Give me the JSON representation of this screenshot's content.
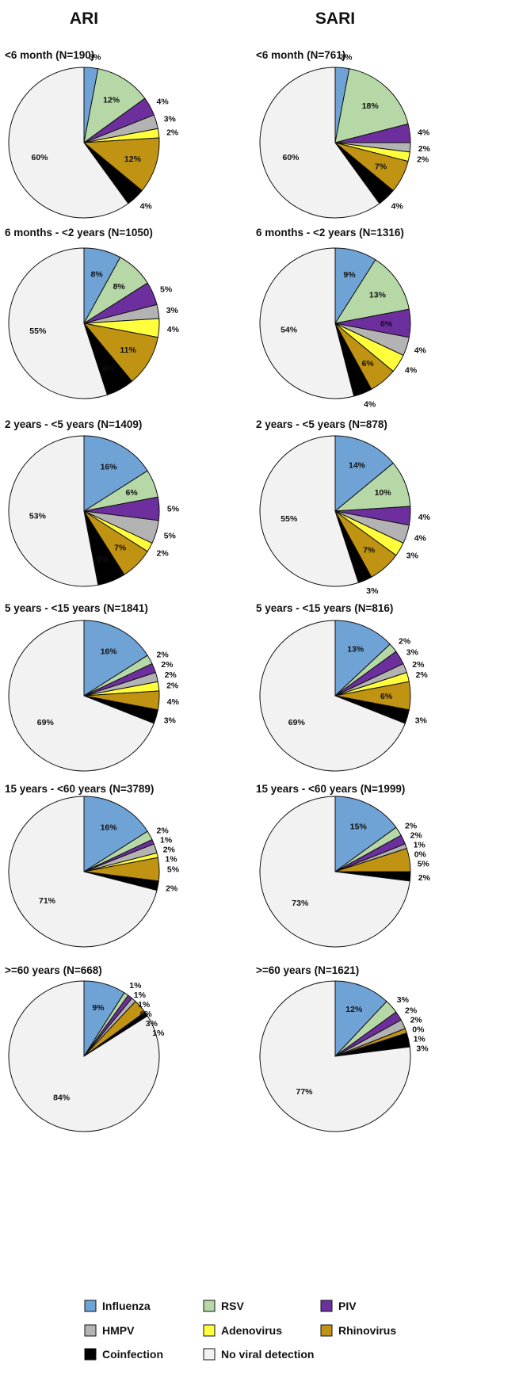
{
  "column_headers": [
    "ARI",
    "SARI"
  ],
  "category_colors": {
    "Influenza": "#6fa3d6",
    "RSV": "#b5d8a6",
    "PIV": "#6e2f9e",
    "HMPV": "#b3b3b3",
    "Adenovirus": "#ffff3c",
    "Rhinovirus": "#c09313",
    "Coinfection": "#000000",
    "No viral detection": "#f2f2f2"
  },
  "legend": [
    {
      "label": "Influenza",
      "color": "#6fa3d6"
    },
    {
      "label": "RSV",
      "color": "#b5d8a6"
    },
    {
      "label": "PIV",
      "color": "#6e2f9e"
    },
    {
      "label": "HMPV",
      "color": "#b3b3b3"
    },
    {
      "label": "Adenovirus",
      "color": "#ffff3c"
    },
    {
      "label": "Rhinovirus",
      "color": "#c09313"
    },
    {
      "label": "Coinfection",
      "color": "#000000"
    },
    {
      "label": "No viral detection",
      "color": "#f2f2f2"
    }
  ],
  "chart_data": [
    {
      "type": "pie",
      "group": "ARI",
      "title": "<6 month (N=190)",
      "categories": [
        "Influenza",
        "RSV",
        "PIV",
        "HMPV",
        "Adenovirus",
        "Rhinovirus",
        "Coinfection",
        "No viral detection"
      ],
      "values": [
        3,
        12,
        4,
        3,
        2,
        12,
        4,
        60
      ],
      "labels": [
        "3%",
        "12%",
        "4%",
        "3%",
        "2%",
        "12%",
        "4%",
        "60%"
      ]
    },
    {
      "type": "pie",
      "group": "SARI",
      "title": "<6 month (N=761)",
      "categories": [
        "Influenza",
        "RSV",
        "PIV",
        "HMPV",
        "Adenovirus",
        "Rhinovirus",
        "Coinfection",
        "No viral detection"
      ],
      "values": [
        3,
        18,
        4,
        2,
        2,
        7,
        4,
        60
      ],
      "labels": [
        "3%",
        "18%",
        "4%",
        "2%",
        "2%",
        "7%",
        "4%",
        "60%"
      ]
    },
    {
      "type": "pie",
      "group": "ARI",
      "title": "6 months - <2 years (N=1050)",
      "categories": [
        "Influenza",
        "RSV",
        "PIV",
        "HMPV",
        "Adenovirus",
        "Rhinovirus",
        "Coinfection",
        "No viral detection"
      ],
      "values": [
        8,
        8,
        5,
        3,
        4,
        11,
        6,
        55
      ],
      "labels": [
        "8%",
        "8%",
        "5%",
        "3%",
        "4%",
        "11%",
        "6%",
        "55%"
      ]
    },
    {
      "type": "pie",
      "group": "SARI",
      "title": "6 months - <2 years (N=1316)",
      "categories": [
        "Influenza",
        "RSV",
        "PIV",
        "HMPV",
        "Adenovirus",
        "Rhinovirus",
        "Coinfection",
        "No viral detection"
      ],
      "values": [
        9,
        13,
        6,
        4,
        4,
        6,
        4,
        54
      ],
      "labels": [
        "9%",
        "13%",
        "6%",
        "4%",
        "4%",
        "6%",
        "4%",
        "54%"
      ]
    },
    {
      "type": "pie",
      "group": "ARI",
      "title": "2 years - <5 years (N=1409)",
      "categories": [
        "Influenza",
        "RSV",
        "PIV",
        "HMPV",
        "Adenovirus",
        "Rhinovirus",
        "Coinfection",
        "No viral detection"
      ],
      "values": [
        16,
        6,
        5,
        5,
        2,
        7,
        6,
        53
      ],
      "labels": [
        "16%",
        "6%",
        "5%",
        "5%",
        "2%",
        "7%",
        "6%",
        "53%"
      ]
    },
    {
      "type": "pie",
      "group": "SARI",
      "title": "2 years - <5 years (N=878)",
      "categories": [
        "Influenza",
        "RSV",
        "PIV",
        "HMPV",
        "Adenovirus",
        "Rhinovirus",
        "Coinfection",
        "No viral detection"
      ],
      "values": [
        14,
        10,
        4,
        4,
        3,
        7,
        3,
        55
      ],
      "labels": [
        "14%",
        "10%",
        "4%",
        "4%",
        "3%",
        "7%",
        "3%",
        "55%"
      ]
    },
    {
      "type": "pie",
      "group": "ARI",
      "title": "5 years - <15 years (N=1841)",
      "categories": [
        "Influenza",
        "RSV",
        "PIV",
        "HMPV",
        "Adenovirus",
        "Rhinovirus",
        "Coinfection",
        "No viral detection"
      ],
      "values": [
        16,
        2,
        2,
        2,
        2,
        4,
        3,
        69
      ],
      "labels": [
        "16%",
        "2%",
        "2%",
        "2%",
        "2%",
        "4%",
        "3%",
        "69%"
      ]
    },
    {
      "type": "pie",
      "group": "SARI",
      "title": "5 years - <15 years (N=816)",
      "categories": [
        "Influenza",
        "RSV",
        "PIV",
        "HMPV",
        "Adenovirus",
        "Rhinovirus",
        "Coinfection",
        "No viral detection"
      ],
      "values": [
        13,
        2,
        3,
        2,
        2,
        6,
        3,
        69
      ],
      "labels": [
        "13%",
        "2%",
        "3%",
        "2%",
        "2%",
        "6%",
        "3%",
        "69%"
      ]
    },
    {
      "type": "pie",
      "group": "ARI",
      "title": "15 years - <60 years (N=3789)",
      "categories": [
        "Influenza",
        "RSV",
        "PIV",
        "HMPV",
        "Adenovirus",
        "Rhinovirus",
        "Coinfection",
        "No viral detection"
      ],
      "values": [
        16,
        2,
        1,
        2,
        1,
        5,
        2,
        71
      ],
      "labels": [
        "16%",
        "2%",
        "1%",
        "2%",
        "1%",
        "5%",
        "2%",
        "71%"
      ]
    },
    {
      "type": "pie",
      "group": "SARI",
      "title": "15 years - <60 years (N=1999)",
      "categories": [
        "Influenza",
        "RSV",
        "PIV",
        "HMPV",
        "Adenovirus",
        "Rhinovirus",
        "Coinfection",
        "No viral detection"
      ],
      "values": [
        15,
        2,
        2,
        1,
        0,
        5,
        2,
        73
      ],
      "labels": [
        "15%",
        "2%",
        "2%",
        "1%",
        "0%",
        "5%",
        "2%",
        "73%"
      ]
    },
    {
      "type": "pie",
      "group": "ARI",
      "title": ">=60 years (N=668)",
      "categories": [
        "Influenza",
        "RSV",
        "PIV",
        "HMPV",
        "Adenovirus",
        "Rhinovirus",
        "Coinfection",
        "No viral detection"
      ],
      "values": [
        9,
        1,
        1,
        1,
        0,
        3,
        1,
        84
      ],
      "labels": [
        "9%",
        "1%",
        "1%",
        "1%",
        "0%",
        "3%",
        "1%",
        "84%"
      ]
    },
    {
      "type": "pie",
      "group": "SARI",
      "title": ">=60 years (N=1621)",
      "categories": [
        "Influenza",
        "RSV",
        "PIV",
        "HMPV",
        "Adenovirus",
        "Rhinovirus",
        "Coinfection",
        "No viral detection"
      ],
      "values": [
        12,
        3,
        2,
        2,
        0,
        1,
        3,
        77
      ],
      "labels": [
        "12%",
        "3%",
        "2%",
        "2%",
        "0%",
        "1%",
        "3%",
        "77%"
      ]
    }
  ]
}
